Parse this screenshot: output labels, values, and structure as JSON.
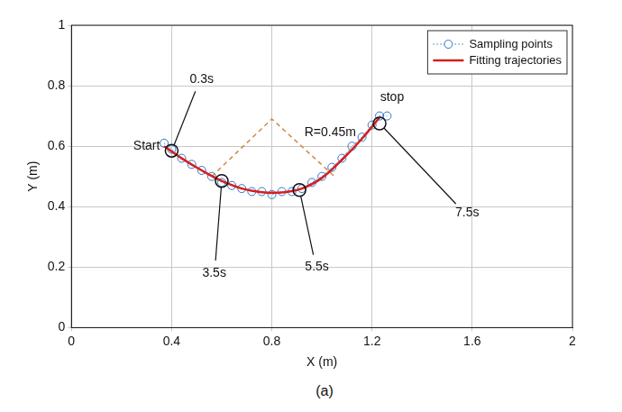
{
  "chart_data": {
    "type": "scatter",
    "x_label": "X (m)",
    "y_label": "Y (m)",
    "caption": "(a)",
    "xlim": [
      0,
      2
    ],
    "xticks": [
      0,
      0.4,
      0.8,
      1.2,
      1.6,
      2
    ],
    "ylim": [
      0,
      1
    ],
    "yticks": [
      0,
      0.2,
      0.4,
      0.6,
      0.8,
      1
    ],
    "grid": true,
    "legend": "top-right",
    "series": [
      {
        "name": "Sampling points",
        "color": "#2e75c8",
        "marker": "circle",
        "line_style": "dotted",
        "x": [
          0.37,
          0.4,
          0.44,
          0.48,
          0.52,
          0.56,
          0.6,
          0.64,
          0.68,
          0.72,
          0.76,
          0.8,
          0.84,
          0.88,
          0.92,
          0.96,
          1.0,
          1.04,
          1.08,
          1.12,
          1.16,
          1.2,
          1.23,
          1.26
        ],
        "values": [
          0.61,
          0.59,
          0.56,
          0.54,
          0.52,
          0.5,
          0.48,
          0.47,
          0.46,
          0.45,
          0.45,
          0.44,
          0.45,
          0.45,
          0.46,
          0.48,
          0.5,
          0.53,
          0.56,
          0.6,
          0.63,
          0.67,
          0.7,
          0.7
        ]
      },
      {
        "name": "Fitting trajectories",
        "color": "#d42020",
        "marker": "none",
        "line_style": "solid",
        "x": [
          0.37,
          0.44,
          0.52,
          0.6,
          0.68,
          0.76,
          0.84,
          0.92,
          1.0,
          1.08,
          1.16,
          1.23
        ],
        "values": [
          0.6,
          0.56,
          0.52,
          0.485,
          0.46,
          0.448,
          0.447,
          0.46,
          0.495,
          0.555,
          0.625,
          0.695
        ]
      }
    ],
    "radius_lines": {
      "label": "R=0.45m",
      "label_x": 0.93,
      "label_y": 0.645,
      "color": "#d08a40",
      "line_style": "dashed",
      "x": [
        0.56,
        0.8,
        1.05
      ],
      "values": [
        0.5,
        0.69,
        0.5
      ]
    },
    "annotations": [
      {
        "text": "Start",
        "x": 0.3,
        "y": 0.6
      },
      {
        "text": "stop",
        "x": 1.28,
        "y": 0.76
      }
    ],
    "time_marks": [
      {
        "label": "0.3s",
        "x": 0.4,
        "y": 0.585,
        "label_x": 0.52,
        "label_y": 0.82
      },
      {
        "label": "3.5s",
        "x": 0.6,
        "y": 0.485,
        "label_x": 0.57,
        "label_y": 0.18
      },
      {
        "label": "5.5s",
        "x": 0.91,
        "y": 0.455,
        "label_x": 0.98,
        "label_y": 0.2
      },
      {
        "label": "7.5s",
        "x": 1.23,
        "y": 0.675,
        "label_x": 1.58,
        "label_y": 0.38
      }
    ]
  }
}
